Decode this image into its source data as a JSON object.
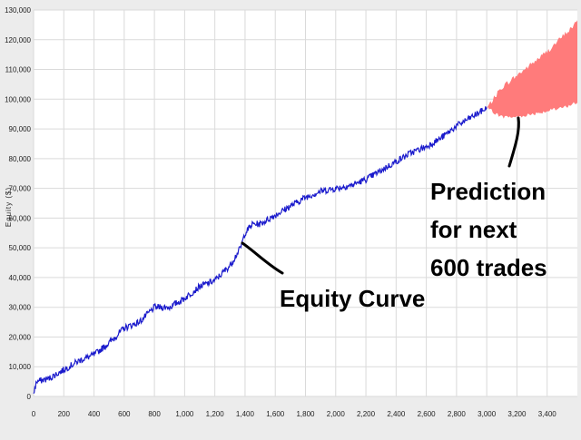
{
  "chart_data": {
    "type": "line",
    "title": "",
    "xlabel": "",
    "ylabel": "Equity ($)",
    "xlim": [
      0,
      3600
    ],
    "ylim": [
      0,
      130000
    ],
    "grid": true,
    "x_ticks": [
      0,
      200,
      400,
      600,
      800,
      1000,
      1200,
      1400,
      1600,
      1800,
      2000,
      2200,
      2400,
      2600,
      2800,
      3000,
      3200,
      3400
    ],
    "x_tick_labels": [
      "0",
      "200",
      "400",
      "600",
      "800",
      "1,000",
      "1,200",
      "1,400",
      "1,600",
      "1,800",
      "2,000",
      "2,200",
      "2,400",
      "2,600",
      "2,800",
      "3,000",
      "3,200",
      "3,400"
    ],
    "y_ticks": [
      0,
      10000,
      20000,
      30000,
      40000,
      50000,
      60000,
      70000,
      80000,
      90000,
      100000,
      110000,
      120000,
      130000
    ],
    "y_tick_labels": [
      "0",
      "10,000",
      "20,000",
      "30,000",
      "40,000",
      "50,000",
      "60,000",
      "70,000",
      "80,000",
      "90,000",
      "100,000",
      "110,000",
      "120,000",
      "130,000"
    ],
    "colors": {
      "line": "#1a1acc",
      "band": "#ff7b7b",
      "plot_bg": "#ffffff",
      "grid": "#dadada"
    },
    "series": [
      {
        "type": "line",
        "x": [
          0,
          20,
          100,
          200,
          300,
          400,
          500,
          600,
          700,
          800,
          900,
          1000,
          1100,
          1200,
          1300,
          1370,
          1400,
          1450,
          1500,
          1600,
          1700,
          1800,
          1900,
          2000,
          2100,
          2200,
          2300,
          2400,
          2500,
          2600,
          2700,
          2800,
          2900,
          3000
        ],
        "y": [
          1000,
          5000,
          6000,
          9000,
          12000,
          14000,
          18000,
          23000,
          25000,
          30000,
          30000,
          33000,
          37000,
          39000,
          44000,
          50000,
          55000,
          58000,
          58000,
          61000,
          64000,
          67000,
          69000,
          70000,
          71000,
          73000,
          76000,
          79000,
          82000,
          84000,
          87000,
          91000,
          94000,
          97000
        ]
      },
      {
        "type": "area",
        "x": [
          3000,
          3100,
          3200,
          3300,
          3400,
          3500,
          3600
        ],
        "y_low": [
          97000,
          94000,
          94000,
          95000,
          96000,
          97000,
          99000
        ],
        "y_high": [
          97000,
          104000,
          108000,
          112000,
          116000,
          121000,
          126000
        ]
      }
    ],
    "annotations": [
      {
        "text": "Equity Curve",
        "points_to": [
          1370,
          50000
        ]
      },
      {
        "text_lines": [
          "Prediction",
          "for next",
          "600 trades"
        ],
        "points_to": [
          3200,
          94000
        ]
      }
    ]
  }
}
